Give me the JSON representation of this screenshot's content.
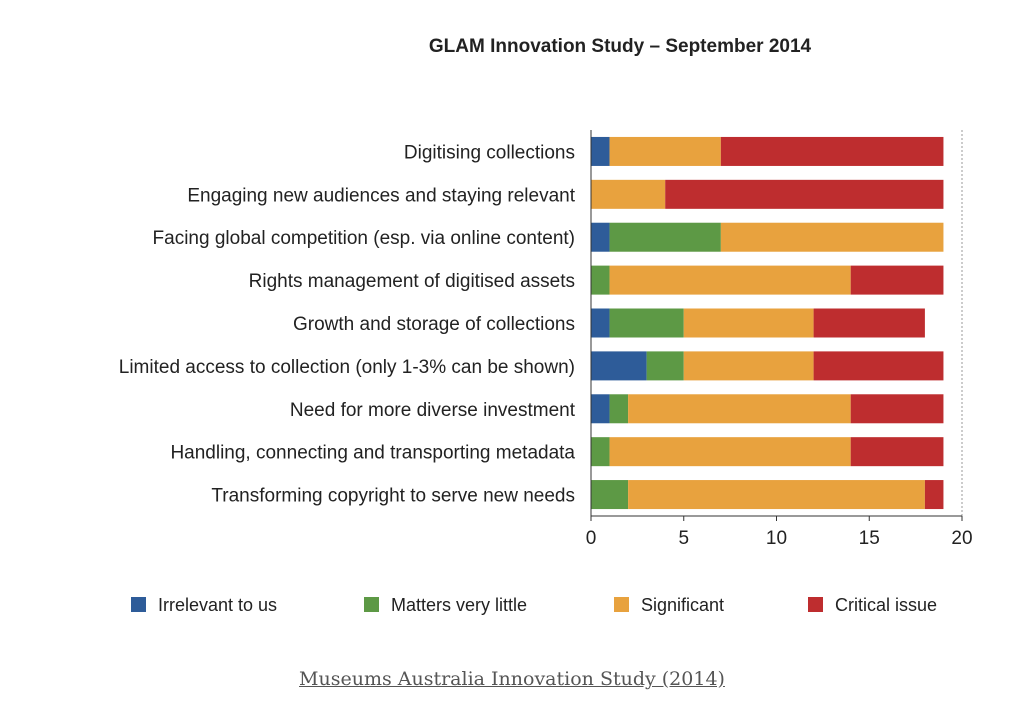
{
  "chart_data": {
    "type": "bar",
    "orientation": "horizontal",
    "stacked": true,
    "title": "GLAM Innovation Study – September 2014",
    "categories": [
      "Digitising collections",
      "Engaging new audiences and staying relevant",
      "Facing global competition (esp. via online content)",
      "Rights management of digitised assets",
      "Growth and storage of collections",
      "Limited access to collection (only 1-3% can be shown)",
      "Need for more diverse investment",
      "Handling, connecting and transporting metadata",
      "Transforming copyright to serve new needs"
    ],
    "series": [
      {
        "name": "Irrelevant to us",
        "color": "#2e5c99",
        "values": [
          1,
          0,
          1,
          0,
          1,
          3,
          1,
          0,
          0
        ]
      },
      {
        "name": "Matters very little",
        "color": "#5d9945",
        "values": [
          0,
          0,
          6,
          1,
          4,
          2,
          1,
          1,
          2
        ]
      },
      {
        "name": "Significant",
        "color": "#e8a23e",
        "values": [
          6,
          4,
          12,
          13,
          7,
          7,
          12,
          13,
          16
        ]
      },
      {
        "name": "Critical issue",
        "color": "#be2d2f",
        "values": [
          12,
          15,
          0,
          5,
          6,
          7,
          5,
          5,
          1
        ]
      }
    ],
    "xlim": [
      0,
      20
    ],
    "xticks": [
      0,
      5,
      10,
      15,
      20
    ],
    "xlabel": "",
    "ylabel": "",
    "grid": "vertical dashed line at max",
    "legend": "bottom"
  },
  "caption": {
    "text": "Museums Australia Innovation Study (2014)"
  }
}
